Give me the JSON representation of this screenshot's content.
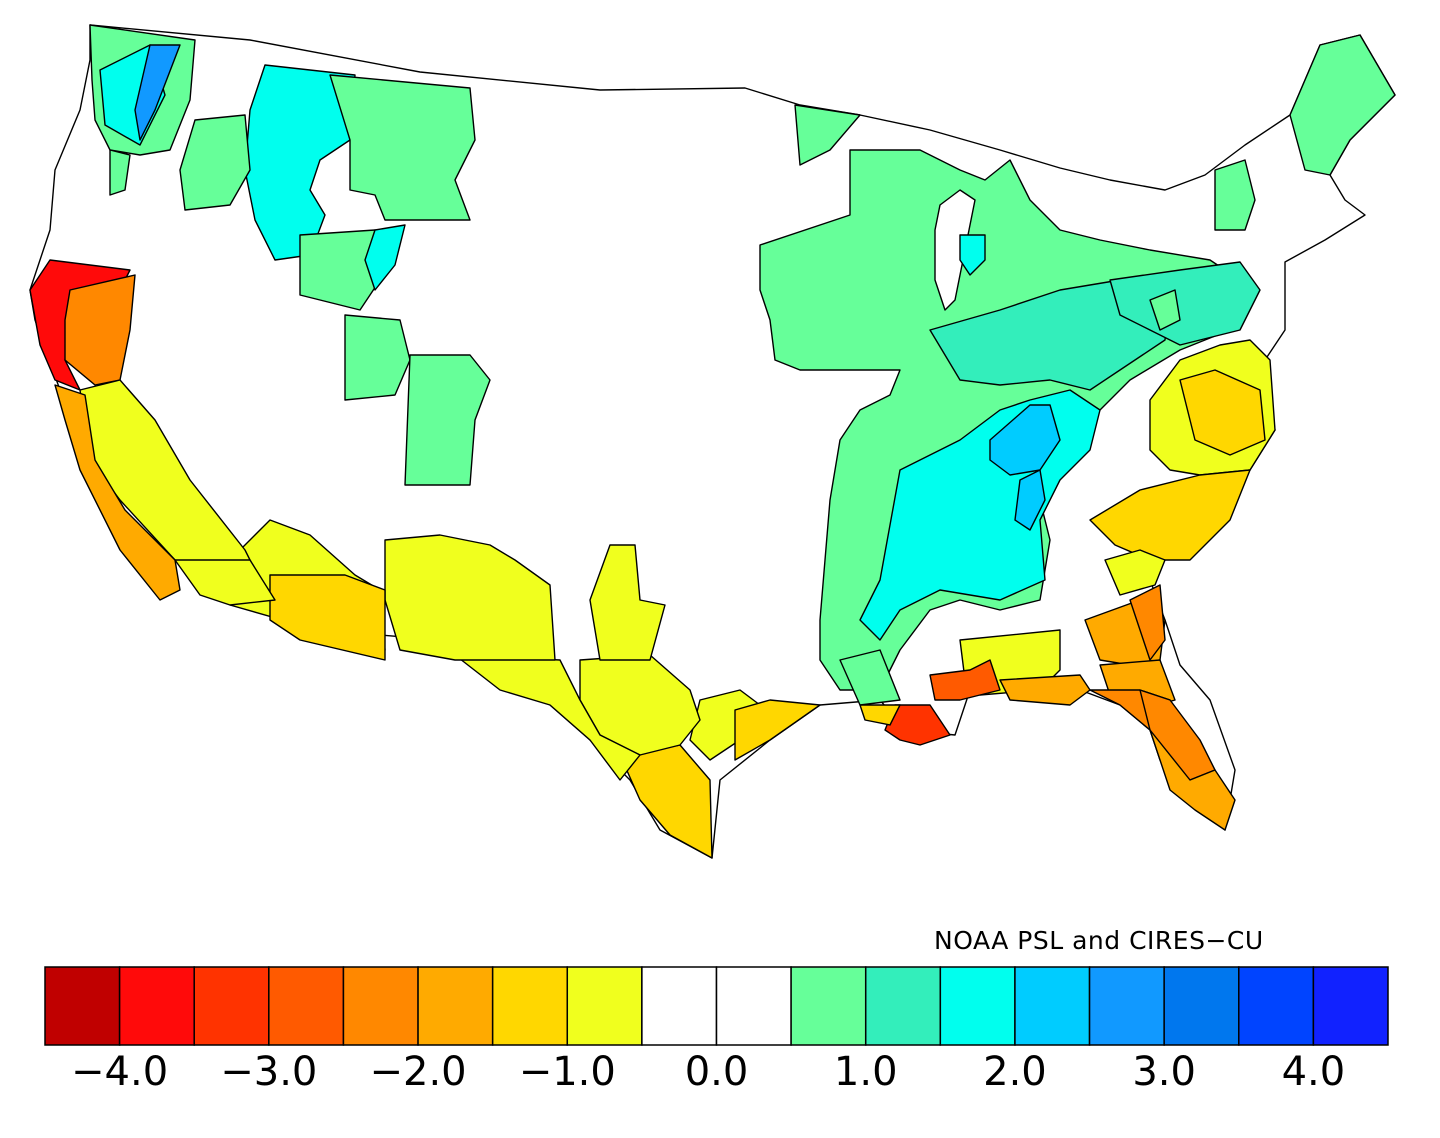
{
  "map": {
    "credit": "NOAA PSL and CIRES−CU",
    "colors": {
      "dark_red": "#c00000",
      "red": "#ff0a0a",
      "red_orange": "#ff3300",
      "orange_red": "#ff5a00",
      "orange": "#ff8800",
      "orange_yellow": "#ffaa00",
      "gold": "#ffd700",
      "yellow": "#f0ff1e",
      "white": "#ffffff",
      "light_green": "#66ff99",
      "teal": "#33eebb",
      "cyan": "#00ffee",
      "sky": "#00ccff",
      "light_blue": "#1199ff",
      "mid_blue": "#0077ee",
      "blue": "#0044ff",
      "dark_blue": "#1122ff"
    }
  },
  "legend": {
    "colors": [
      "#c00000",
      "#ff0a0a",
      "#ff3300",
      "#ff5a00",
      "#ff8800",
      "#ffaa00",
      "#ffd700",
      "#f0ff1e",
      "#ffffff",
      "#ffffff",
      "#66ff99",
      "#33eebb",
      "#00ffee",
      "#00ccff",
      "#1199ff",
      "#0077ee",
      "#0044ff",
      "#1122ff"
    ],
    "tick_labels": [
      "−4.0",
      "−3.0",
      "−2.0",
      "−1.0",
      "0.0",
      "1.0",
      "2.0",
      "3.0",
      "4.0"
    ]
  }
}
